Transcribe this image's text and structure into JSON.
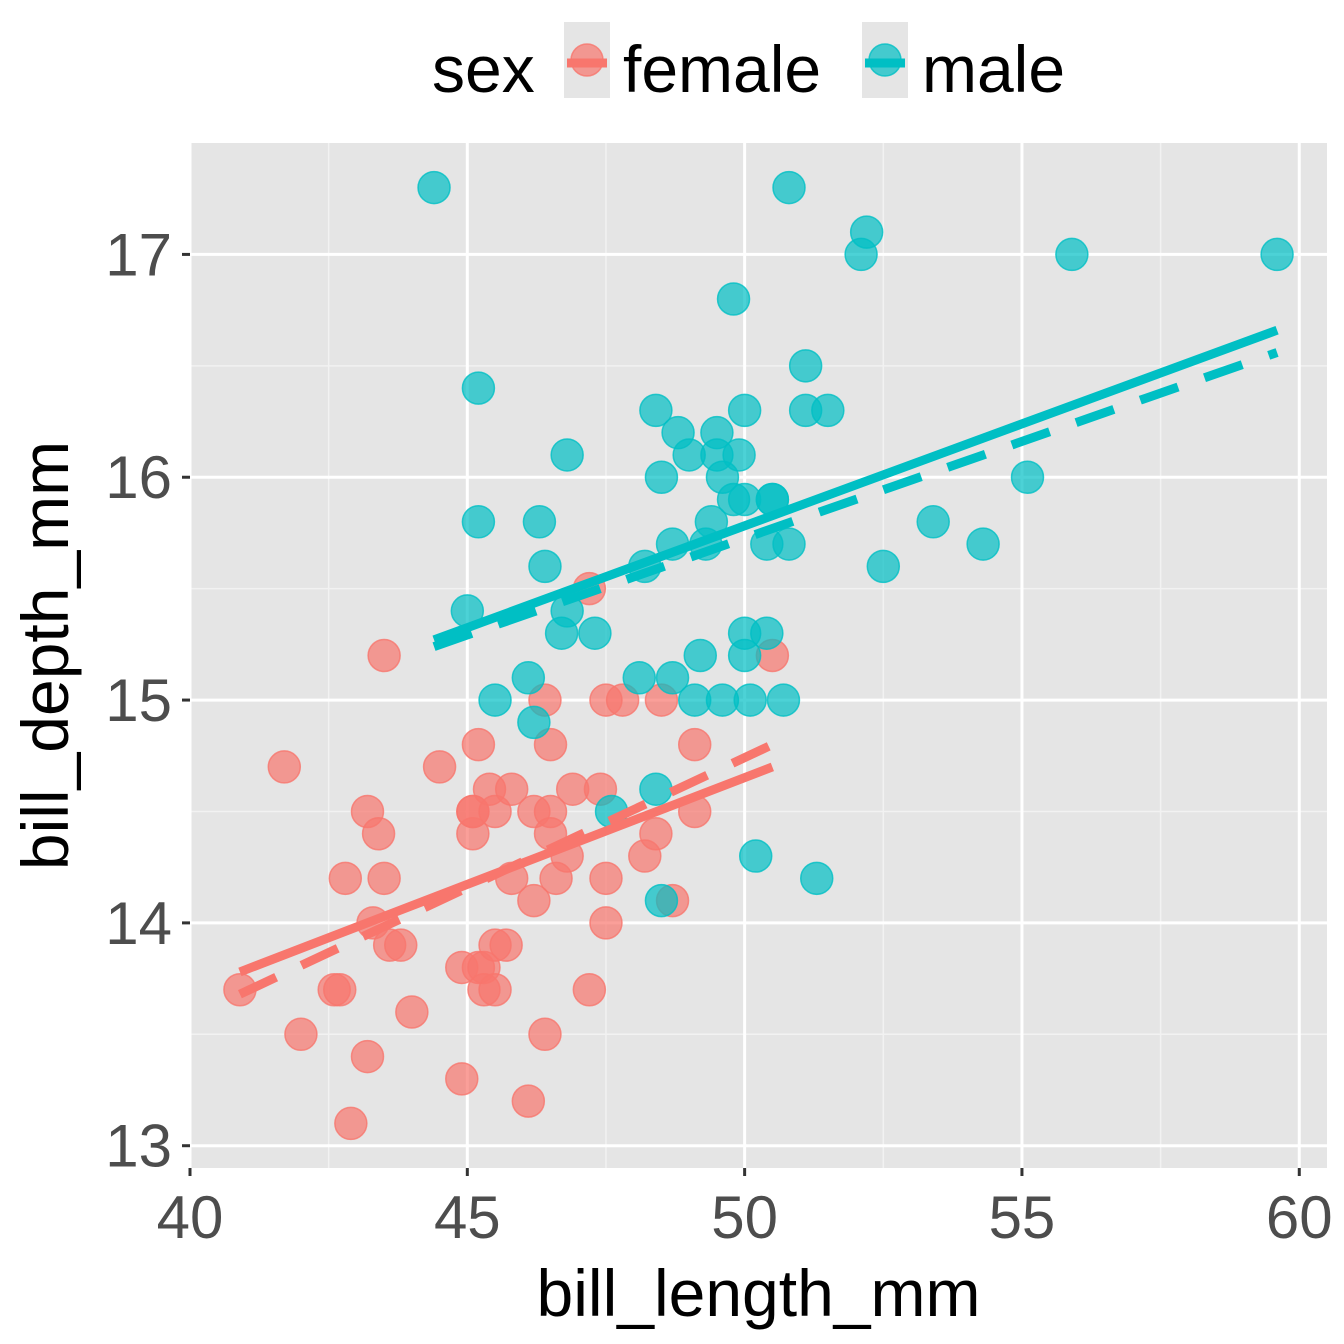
{
  "chart_data": {
    "type": "scatter",
    "title": "",
    "xlabel": "bill_length_mm",
    "ylabel": "bill_depth_mm",
    "xlim": [
      40,
      60.5
    ],
    "ylim": [
      12.9,
      17.5
    ],
    "x_ticks": [
      40,
      45,
      50,
      55,
      60
    ],
    "x_tick_labels": [
      "40",
      "45",
      "50",
      "55",
      "60"
    ],
    "y_ticks": [
      13,
      14,
      15,
      16,
      17
    ],
    "y_tick_labels": [
      "13",
      "14",
      "15",
      "16",
      "17"
    ],
    "grid": true,
    "legend": {
      "position": "top",
      "title": "sex",
      "entries": [
        "female",
        "male"
      ]
    },
    "series": [
      {
        "name": "female",
        "color": "#F8766D",
        "points": [
          [
            40.9,
            13.7
          ],
          [
            41.7,
            14.7
          ],
          [
            42.0,
            13.5
          ],
          [
            42.6,
            13.7
          ],
          [
            42.7,
            13.7
          ],
          [
            42.8,
            14.2
          ],
          [
            42.9,
            13.1
          ],
          [
            43.2,
            13.4
          ],
          [
            43.2,
            14.5
          ],
          [
            43.3,
            14.0
          ],
          [
            43.4,
            14.4
          ],
          [
            43.5,
            14.2
          ],
          [
            43.5,
            15.2
          ],
          [
            43.6,
            13.9
          ],
          [
            43.8,
            13.9
          ],
          [
            44.0,
            13.6
          ],
          [
            44.5,
            14.7
          ],
          [
            44.9,
            13.8
          ],
          [
            44.9,
            13.3
          ],
          [
            45.1,
            14.4
          ],
          [
            45.1,
            14.5
          ],
          [
            45.1,
            14.5
          ],
          [
            45.2,
            14.8
          ],
          [
            45.2,
            13.8
          ],
          [
            45.3,
            13.8
          ],
          [
            45.3,
            13.7
          ],
          [
            45.4,
            14.6
          ],
          [
            45.5,
            13.7
          ],
          [
            45.5,
            13.9
          ],
          [
            45.5,
            14.5
          ],
          [
            45.7,
            13.9
          ],
          [
            45.8,
            14.2
          ],
          [
            45.8,
            14.6
          ],
          [
            46.1,
            13.2
          ],
          [
            46.2,
            14.1
          ],
          [
            46.2,
            14.5
          ],
          [
            46.4,
            15.0
          ],
          [
            46.4,
            13.5
          ],
          [
            46.5,
            14.5
          ],
          [
            46.5,
            14.8
          ],
          [
            46.5,
            14.4
          ],
          [
            46.6,
            14.2
          ],
          [
            46.8,
            14.3
          ],
          [
            46.9,
            14.6
          ],
          [
            47.2,
            13.7
          ],
          [
            47.2,
            15.5
          ],
          [
            47.4,
            14.6
          ],
          [
            47.5,
            14.2
          ],
          [
            47.5,
            14.0
          ],
          [
            47.5,
            15.0
          ],
          [
            47.8,
            15.0
          ],
          [
            48.2,
            14.3
          ],
          [
            48.4,
            14.4
          ],
          [
            48.5,
            15.0
          ],
          [
            48.7,
            14.1
          ],
          [
            49.1,
            14.8
          ],
          [
            49.1,
            14.5
          ],
          [
            50.5,
            15.2
          ]
        ],
        "fit": {
          "x": [
            40.9,
            50.5
          ],
          "y": [
            13.78,
            14.7
          ]
        },
        "fit_dashed": {
          "x": [
            40.9,
            50.5
          ],
          "y": [
            13.68,
            14.8
          ]
        }
      },
      {
        "name": "male",
        "color": "#00BFC4",
        "points": [
          [
            44.4,
            17.3
          ],
          [
            45.0,
            15.4
          ],
          [
            45.2,
            15.8
          ],
          [
            45.2,
            16.4
          ],
          [
            45.5,
            15.0
          ],
          [
            46.1,
            15.1
          ],
          [
            46.2,
            14.9
          ],
          [
            46.3,
            15.8
          ],
          [
            46.4,
            15.6
          ],
          [
            46.7,
            15.3
          ],
          [
            46.8,
            15.4
          ],
          [
            46.8,
            16.1
          ],
          [
            47.3,
            15.3
          ],
          [
            47.6,
            14.5
          ],
          [
            48.1,
            15.1
          ],
          [
            48.2,
            15.6
          ],
          [
            48.4,
            16.3
          ],
          [
            48.4,
            14.6
          ],
          [
            48.5,
            14.1
          ],
          [
            48.5,
            16.0
          ],
          [
            48.7,
            15.7
          ],
          [
            48.7,
            15.1
          ],
          [
            48.8,
            16.2
          ],
          [
            49.0,
            16.1
          ],
          [
            49.1,
            15.0
          ],
          [
            49.2,
            15.2
          ],
          [
            49.3,
            15.7
          ],
          [
            49.4,
            15.8
          ],
          [
            49.5,
            16.2
          ],
          [
            49.5,
            16.1
          ],
          [
            49.6,
            16.0
          ],
          [
            49.6,
            15.0
          ],
          [
            49.8,
            15.9
          ],
          [
            49.8,
            16.8
          ],
          [
            49.9,
            16.1
          ],
          [
            50.0,
            16.3
          ],
          [
            50.0,
            15.9
          ],
          [
            50.0,
            15.2
          ],
          [
            50.0,
            15.3
          ],
          [
            50.1,
            15.0
          ],
          [
            50.2,
            14.3
          ],
          [
            50.4,
            15.7
          ],
          [
            50.4,
            15.3
          ],
          [
            50.5,
            15.9
          ],
          [
            50.5,
            15.9
          ],
          [
            50.7,
            15.0
          ],
          [
            50.8,
            15.7
          ],
          [
            50.8,
            17.3
          ],
          [
            51.1,
            16.5
          ],
          [
            51.1,
            16.3
          ],
          [
            51.3,
            14.2
          ],
          [
            51.5,
            16.3
          ],
          [
            52.1,
            17.0
          ],
          [
            52.2,
            17.1
          ],
          [
            52.5,
            15.6
          ],
          [
            53.4,
            15.8
          ],
          [
            54.3,
            15.7
          ],
          [
            55.1,
            16.0
          ],
          [
            55.9,
            17.0
          ],
          [
            59.6,
            17.0
          ]
        ],
        "fit": {
          "x": [
            44.4,
            59.6
          ],
          "y": [
            15.27,
            16.66
          ]
        },
        "fit_dashed": {
          "x": [
            44.4,
            59.6
          ],
          "y": [
            15.24,
            16.56
          ]
        }
      }
    ]
  }
}
